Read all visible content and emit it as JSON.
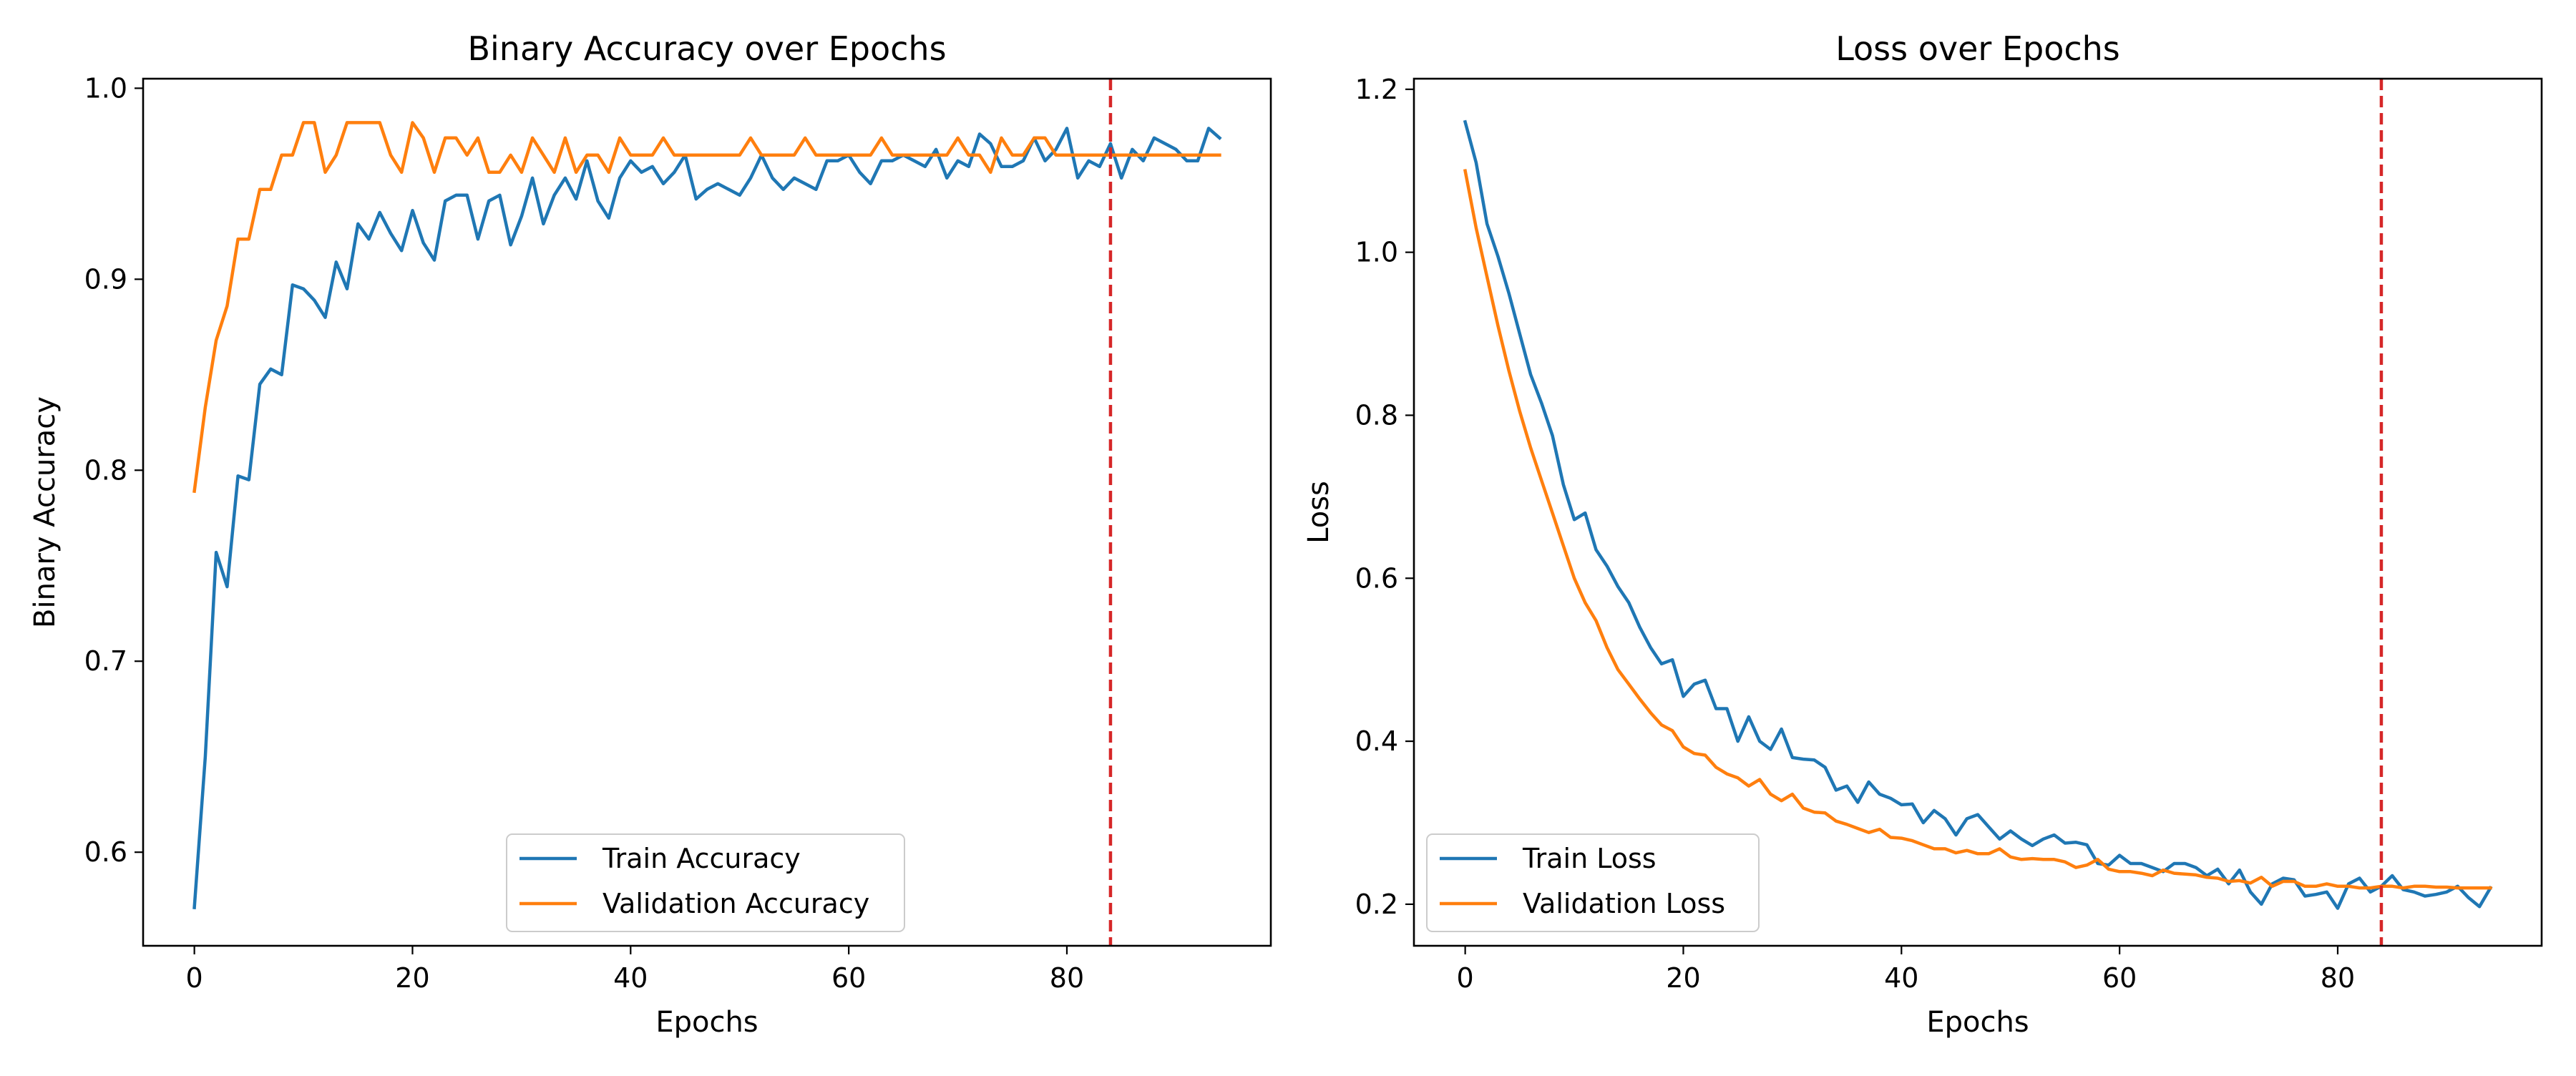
{
  "chart_data": [
    {
      "type": "line",
      "title": "Binary Accuracy over Epochs",
      "xlabel": "Epochs",
      "ylabel": "Binary Accuracy",
      "xlim": [
        -4.7,
        98.7
      ],
      "ylim": [
        0.551,
        1.005
      ],
      "xticks": [
        0,
        20,
        40,
        60,
        80
      ],
      "yticks": [
        0.6,
        0.7,
        0.8,
        0.9,
        1.0
      ],
      "ytick_labels": [
        "0.6",
        "0.7",
        "0.8",
        "0.9",
        "1.0"
      ],
      "grid": false,
      "legend_position": "lower center",
      "vline": {
        "x": 84,
        "color": "#d62728",
        "style": "dashed"
      },
      "series": [
        {
          "name": "Train Accuracy",
          "color": "#1f77b4",
          "values": [
            0.571,
            0.65,
            0.757,
            0.739,
            0.797,
            0.795,
            0.845,
            0.853,
            0.85,
            0.897,
            0.895,
            0.889,
            0.88,
            0.909,
            0.895,
            0.929,
            0.921,
            0.935,
            0.924,
            0.915,
            0.936,
            0.919,
            0.91,
            0.941,
            0.944,
            0.944,
            0.921,
            0.941,
            0.944,
            0.918,
            0.933,
            0.953,
            0.929,
            0.944,
            0.953,
            0.942,
            0.962,
            0.941,
            0.932,
            0.953,
            0.962,
            0.956,
            0.959,
            0.95,
            0.956,
            0.965,
            0.942,
            0.947,
            0.95,
            0.947,
            0.944,
            0.953,
            0.965,
            0.953,
            0.947,
            0.953,
            0.95,
            0.947,
            0.962,
            0.962,
            0.965,
            0.956,
            0.95,
            0.962,
            0.962,
            0.965,
            0.962,
            0.959,
            0.968,
            0.953,
            0.962,
            0.959,
            0.976,
            0.971,
            0.959,
            0.959,
            0.962,
            0.974,
            0.962,
            0.968,
            0.979,
            0.953,
            0.962,
            0.959,
            0.971,
            0.953,
            0.968,
            0.962,
            0.974,
            0.971,
            0.968,
            0.962,
            0.962,
            0.979,
            0.974
          ]
        },
        {
          "name": "Validation Accuracy",
          "color": "#ff7f0e",
          "values": [
            0.789,
            0.833,
            0.868,
            0.886,
            0.921,
            0.921,
            0.947,
            0.947,
            0.965,
            0.965,
            0.982,
            0.982,
            0.956,
            0.965,
            0.982,
            0.982,
            0.982,
            0.982,
            0.965,
            0.956,
            0.982,
            0.974,
            0.956,
            0.974,
            0.974,
            0.965,
            0.974,
            0.956,
            0.956,
            0.965,
            0.956,
            0.974,
            0.965,
            0.956,
            0.974,
            0.956,
            0.965,
            0.965,
            0.956,
            0.974,
            0.965,
            0.965,
            0.965,
            0.974,
            0.965,
            0.965,
            0.965,
            0.965,
            0.965,
            0.965,
            0.965,
            0.974,
            0.965,
            0.965,
            0.965,
            0.965,
            0.974,
            0.965,
            0.965,
            0.965,
            0.965,
            0.965,
            0.965,
            0.974,
            0.965,
            0.965,
            0.965,
            0.965,
            0.965,
            0.965,
            0.974,
            0.965,
            0.965,
            0.956,
            0.974,
            0.965,
            0.965,
            0.974,
            0.974,
            0.965,
            0.965,
            0.965,
            0.965,
            0.965,
            0.965,
            0.965,
            0.965,
            0.965,
            0.965,
            0.965,
            0.965,
            0.965,
            0.965,
            0.965,
            0.965
          ]
        }
      ]
    },
    {
      "type": "line",
      "title": "Loss over Epochs",
      "xlabel": "Epochs",
      "ylabel": "Loss",
      "xlim": [
        -4.7,
        98.7
      ],
      "ylim": [
        0.149,
        1.213
      ],
      "xticks": [
        0,
        20,
        40,
        60,
        80
      ],
      "yticks": [
        0.2,
        0.4,
        0.6,
        0.8,
        1.0,
        1.2
      ],
      "ytick_labels": [
        "0.2",
        "0.4",
        "0.6",
        "0.8",
        "1.0",
        "1.2"
      ],
      "grid": false,
      "legend_position": "lower left",
      "vline": {
        "x": 84,
        "color": "#d62728",
        "style": "dashed"
      },
      "series": [
        {
          "name": "Train Loss",
          "color": "#1f77b4",
          "values": [
            1.16,
            1.11,
            1.035,
            0.995,
            0.95,
            0.9,
            0.85,
            0.815,
            0.775,
            0.715,
            0.672,
            0.68,
            0.635,
            0.615,
            0.59,
            0.57,
            0.54,
            0.515,
            0.495,
            0.5,
            0.455,
            0.47,
            0.475,
            0.44,
            0.44,
            0.4,
            0.43,
            0.4,
            0.39,
            0.415,
            0.38,
            0.378,
            0.377,
            0.368,
            0.34,
            0.345,
            0.325,
            0.35,
            0.335,
            0.33,
            0.322,
            0.323,
            0.3,
            0.315,
            0.305,
            0.285,
            0.305,
            0.31,
            0.295,
            0.28,
            0.29,
            0.28,
            0.272,
            0.28,
            0.285,
            0.275,
            0.276,
            0.273,
            0.25,
            0.248,
            0.26,
            0.25,
            0.25,
            0.245,
            0.24,
            0.25,
            0.25,
            0.245,
            0.235,
            0.243,
            0.225,
            0.242,
            0.215,
            0.2,
            0.225,
            0.232,
            0.23,
            0.21,
            0.212,
            0.215,
            0.195,
            0.225,
            0.232,
            0.215,
            0.222,
            0.235,
            0.218,
            0.215,
            0.21,
            0.212,
            0.215,
            0.222,
            0.208,
            0.197,
            0.22
          ]
        },
        {
          "name": "Validation Loss",
          "color": "#ff7f0e",
          "values": [
            1.1,
            1.03,
            0.97,
            0.91,
            0.855,
            0.805,
            0.76,
            0.72,
            0.68,
            0.64,
            0.6,
            0.57,
            0.548,
            0.515,
            0.488,
            0.47,
            0.452,
            0.435,
            0.42,
            0.413,
            0.393,
            0.385,
            0.383,
            0.368,
            0.36,
            0.355,
            0.345,
            0.353,
            0.335,
            0.327,
            0.335,
            0.318,
            0.313,
            0.312,
            0.302,
            0.298,
            0.293,
            0.288,
            0.292,
            0.282,
            0.281,
            0.278,
            0.273,
            0.268,
            0.268,
            0.263,
            0.266,
            0.262,
            0.262,
            0.268,
            0.258,
            0.255,
            0.256,
            0.255,
            0.255,
            0.252,
            0.245,
            0.248,
            0.255,
            0.243,
            0.24,
            0.24,
            0.238,
            0.235,
            0.242,
            0.238,
            0.237,
            0.236,
            0.233,
            0.232,
            0.228,
            0.229,
            0.226,
            0.233,
            0.222,
            0.228,
            0.228,
            0.222,
            0.222,
            0.225,
            0.222,
            0.222,
            0.22,
            0.22,
            0.222,
            0.222,
            0.22,
            0.222,
            0.222,
            0.221,
            0.221,
            0.22,
            0.22,
            0.22,
            0.22
          ]
        }
      ]
    }
  ]
}
